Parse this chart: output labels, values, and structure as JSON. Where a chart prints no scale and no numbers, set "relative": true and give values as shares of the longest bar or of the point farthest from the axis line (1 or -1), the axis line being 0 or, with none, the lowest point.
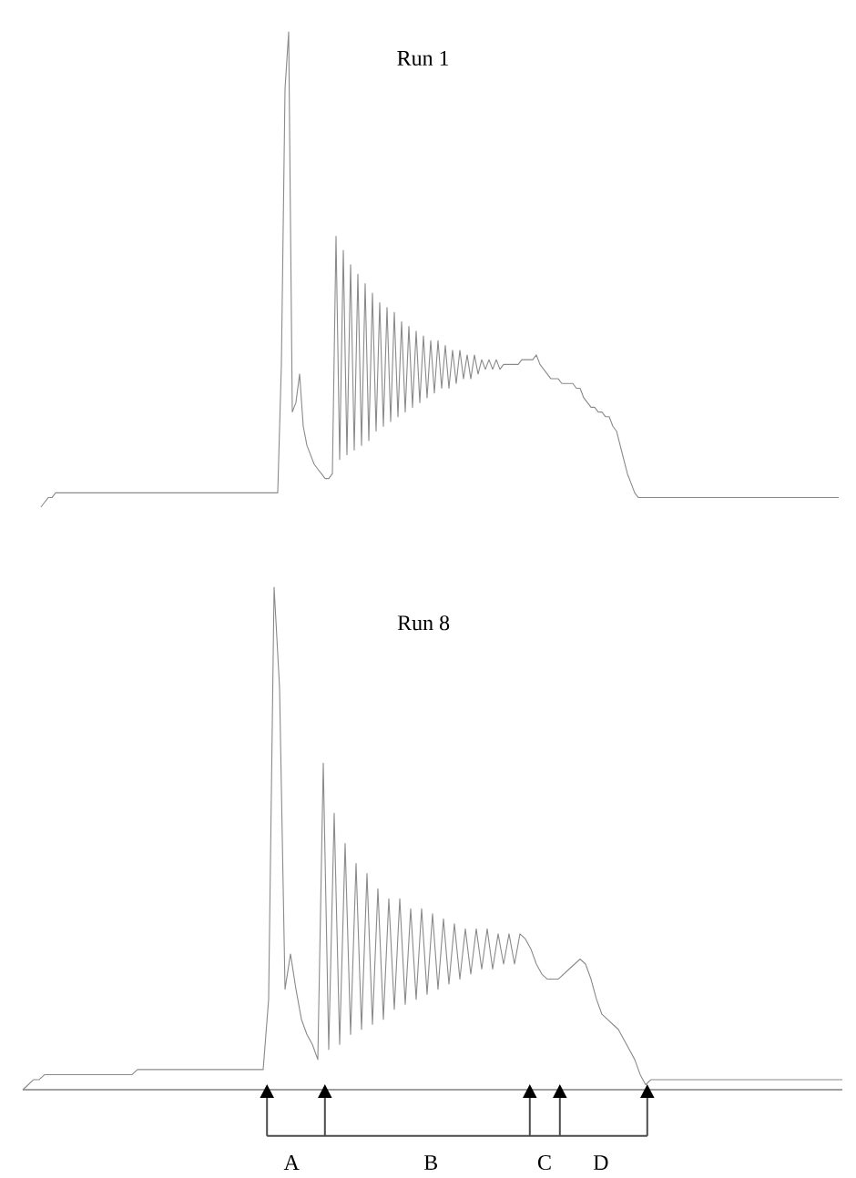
{
  "chart_data": [
    {
      "type": "line",
      "relative": true,
      "title": "Run 1",
      "color": "#8a8a8a",
      "categories": [
        null,
        null,
        null,
        null,
        null,
        null,
        null,
        null,
        null,
        null,
        null,
        null,
        null,
        null,
        null,
        null,
        null,
        null,
        null,
        null,
        null,
        null,
        null,
        null,
        null,
        null,
        null,
        null,
        null,
        null,
        null,
        null,
        null,
        null,
        null,
        null,
        null,
        null,
        null,
        null,
        null,
        null,
        null,
        null,
        null,
        null,
        null,
        null,
        null,
        null,
        null,
        null,
        null,
        null,
        null,
        null,
        null,
        null,
        null,
        null,
        null,
        null,
        null,
        null,
        null,
        null,
        null,
        null,
        null,
        null,
        null,
        null,
        null,
        null,
        null,
        null,
        null,
        null,
        null,
        null,
        null,
        null,
        null,
        null,
        null,
        null,
        null,
        null,
        null,
        null,
        null,
        null,
        null,
        null,
        null,
        null,
        null,
        null,
        null,
        null,
        null,
        null,
        null,
        null,
        null,
        null,
        null,
        null,
        null,
        null,
        null,
        null,
        null,
        null,
        null,
        null,
        null,
        null,
        null,
        null,
        null,
        null,
        null,
        null,
        null,
        null,
        null,
        null,
        null,
        null,
        null,
        null,
        null,
        null,
        null,
        null,
        null,
        null,
        null,
        null,
        null,
        null,
        null,
        null,
        null,
        null,
        null,
        null,
        null,
        null,
        null,
        null,
        null,
        null,
        null,
        null,
        null,
        null,
        null,
        null,
        null,
        null,
        null,
        null,
        null,
        null,
        null,
        null,
        null,
        null,
        null,
        null,
        null,
        null,
        null,
        null,
        null,
        null,
        null,
        null,
        null,
        null,
        null,
        null,
        null,
        null,
        null,
        null,
        null,
        null,
        null,
        null,
        null,
        null,
        null,
        null,
        null,
        null,
        null,
        null,
        null,
        null,
        null,
        null,
        null,
        null,
        null,
        null,
        null,
        null,
        null,
        null,
        null,
        null,
        null,
        null,
        null,
        null,
        null,
        null
      ],
      "values": [
        0,
        0.01,
        0.02,
        0.02,
        0.03,
        0.03,
        0.03,
        0.03,
        0.03,
        0.03,
        0.03,
        0.03,
        0.03,
        0.03,
        0.03,
        0.03,
        0.03,
        0.03,
        0.03,
        0.03,
        0.03,
        0.03,
        0.03,
        0.03,
        0.03,
        0.03,
        0.03,
        0.03,
        0.03,
        0.03,
        0.03,
        0.03,
        0.03,
        0.03,
        0.03,
        0.03,
        0.03,
        0.03,
        0.03,
        0.03,
        0.03,
        0.03,
        0.03,
        0.03,
        0.03,
        0.03,
        0.03,
        0.03,
        0.03,
        0.03,
        0.03,
        0.03,
        0.03,
        0.03,
        0.03,
        0.03,
        0.03,
        0.03,
        0.03,
        0.03,
        0.03,
        0.03,
        0.03,
        0.03,
        0.03,
        0.03,
        0.3,
        0.88,
        1.0,
        0.2,
        0.22,
        0.28,
        0.17,
        0.13,
        0.11,
        0.09,
        0.08,
        0.07,
        0.06,
        0.06,
        0.07,
        0.57,
        0.1,
        0.54,
        0.11,
        0.51,
        0.12,
        0.49,
        0.13,
        0.47,
        0.14,
        0.45,
        0.16,
        0.43,
        0.17,
        0.42,
        0.18,
        0.41,
        0.19,
        0.39,
        0.2,
        0.38,
        0.21,
        0.37,
        0.22,
        0.36,
        0.23,
        0.35,
        0.24,
        0.35,
        0.25,
        0.34,
        0.25,
        0.33,
        0.26,
        0.33,
        0.27,
        0.32,
        0.27,
        0.32,
        0.28,
        0.31,
        0.29,
        0.31,
        0.29,
        0.31,
        0.29,
        0.3,
        0.3,
        0.3,
        0.3,
        0.3,
        0.31,
        0.31,
        0.31,
        0.31,
        0.32,
        0.3,
        0.29,
        0.28,
        0.27,
        0.27,
        0.27,
        0.26,
        0.26,
        0.26,
        0.26,
        0.25,
        0.25,
        0.23,
        0.22,
        0.21,
        0.21,
        0.2,
        0.2,
        0.19,
        0.19,
        0.17,
        0.16,
        0.13,
        0.1,
        0.07,
        0.05,
        0.03,
        0.02,
        0.02,
        0.02,
        0.02,
        0.02,
        0.02,
        0.02,
        0.02,
        0.02,
        0.02,
        0.02,
        0.02,
        0.02,
        0.02,
        0.02,
        0.02,
        0.02,
        0.02,
        0.02,
        0.02,
        0.02,
        0.02,
        0.02,
        0.02,
        0.02,
        0.02,
        0.02,
        0.02,
        0.02,
        0.02,
        0.02,
        0.02,
        0.02,
        0.02,
        0.02,
        0.02,
        0.02,
        0.02,
        0.02,
        0.02,
        0.02,
        0.02,
        0.02,
        0.02,
        0.02,
        0.02,
        0.02,
        0.02,
        0.02,
        0.02,
        0.02,
        0.02,
        0.02,
        0.02,
        0.02,
        0.02
      ]
    },
    {
      "type": "line",
      "relative": true,
      "title": "Run 8",
      "color": "#8a8a8a",
      "categories": [
        null,
        null,
        null,
        null,
        null,
        null,
        null,
        null,
        null,
        null,
        null,
        null,
        null,
        null,
        null,
        null,
        null,
        null,
        null,
        null,
        null,
        null,
        null,
        null,
        null,
        null,
        null,
        null,
        null,
        null,
        null,
        null,
        null,
        null,
        null,
        null,
        null,
        null,
        null,
        null,
        null,
        null,
        null,
        null,
        null,
        null,
        null,
        null,
        null,
        null,
        null,
        null,
        null,
        null,
        null,
        null,
        null,
        null,
        null,
        null,
        null,
        null,
        null,
        null,
        null,
        null,
        null,
        null,
        null,
        null,
        null,
        null,
        null,
        null,
        null,
        null,
        null,
        null,
        null,
        null,
        null,
        null,
        null,
        null,
        null,
        null,
        null,
        null,
        null,
        null,
        null,
        null,
        null,
        null,
        null,
        null,
        null,
        null,
        null,
        null,
        null,
        null,
        null,
        null,
        null,
        null,
        null,
        null,
        null,
        null,
        null,
        null,
        null,
        null,
        null,
        null,
        null,
        null,
        null,
        null,
        null,
        null,
        null,
        null,
        null,
        null,
        null,
        null,
        null,
        null,
        null,
        null,
        null,
        null,
        null,
        null,
        null,
        null,
        null,
        null,
        null,
        null,
        null,
        null,
        null,
        null,
        null,
        null,
        null,
        null,
        null
      ],
      "values": [
        0,
        0.01,
        0.02,
        0.02,
        0.03,
        0.03,
        0.03,
        0.03,
        0.03,
        0.03,
        0.03,
        0.03,
        0.03,
        0.03,
        0.03,
        0.03,
        0.03,
        0.03,
        0.03,
        0.03,
        0.03,
        0.04,
        0.04,
        0.04,
        0.04,
        0.04,
        0.04,
        0.04,
        0.04,
        0.04,
        0.04,
        0.04,
        0.04,
        0.04,
        0.04,
        0.04,
        0.04,
        0.04,
        0.04,
        0.04,
        0.04,
        0.04,
        0.04,
        0.04,
        0.04,
        0.18,
        1.0,
        0.8,
        0.2,
        0.27,
        0.2,
        0.14,
        0.11,
        0.09,
        0.06,
        0.65,
        0.08,
        0.55,
        0.09,
        0.49,
        0.11,
        0.45,
        0.12,
        0.43,
        0.13,
        0.4,
        0.14,
        0.38,
        0.16,
        0.38,
        0.17,
        0.36,
        0.18,
        0.36,
        0.19,
        0.35,
        0.2,
        0.34,
        0.21,
        0.33,
        0.22,
        0.32,
        0.23,
        0.32,
        0.24,
        0.32,
        0.24,
        0.31,
        0.25,
        0.31,
        0.25,
        0.31,
        0.3,
        0.28,
        0.25,
        0.23,
        0.22,
        0.22,
        0.22,
        0.23,
        0.24,
        0.25,
        0.26,
        0.25,
        0.22,
        0.18,
        0.15,
        0.14,
        0.13,
        0.12,
        0.1,
        0.08,
        0.06,
        0.03,
        0.01,
        0.02,
        0.02,
        0.02,
        0.02,
        0.02,
        0.02,
        0.02,
        0.02,
        0.02,
        0.02,
        0.02,
        0.02,
        0.02,
        0.02,
        0.02,
        0.02,
        0.02,
        0.02,
        0.02,
        0.02,
        0.02,
        0.02,
        0.02,
        0.02,
        0.02,
        0.02,
        0.02,
        0.02,
        0.02,
        0.02,
        0.02,
        0.02,
        0.02,
        0.02,
        0.02,
        0.02
      ],
      "annotations": [
        "A",
        "B",
        "C",
        "D"
      ]
    }
  ]
}
